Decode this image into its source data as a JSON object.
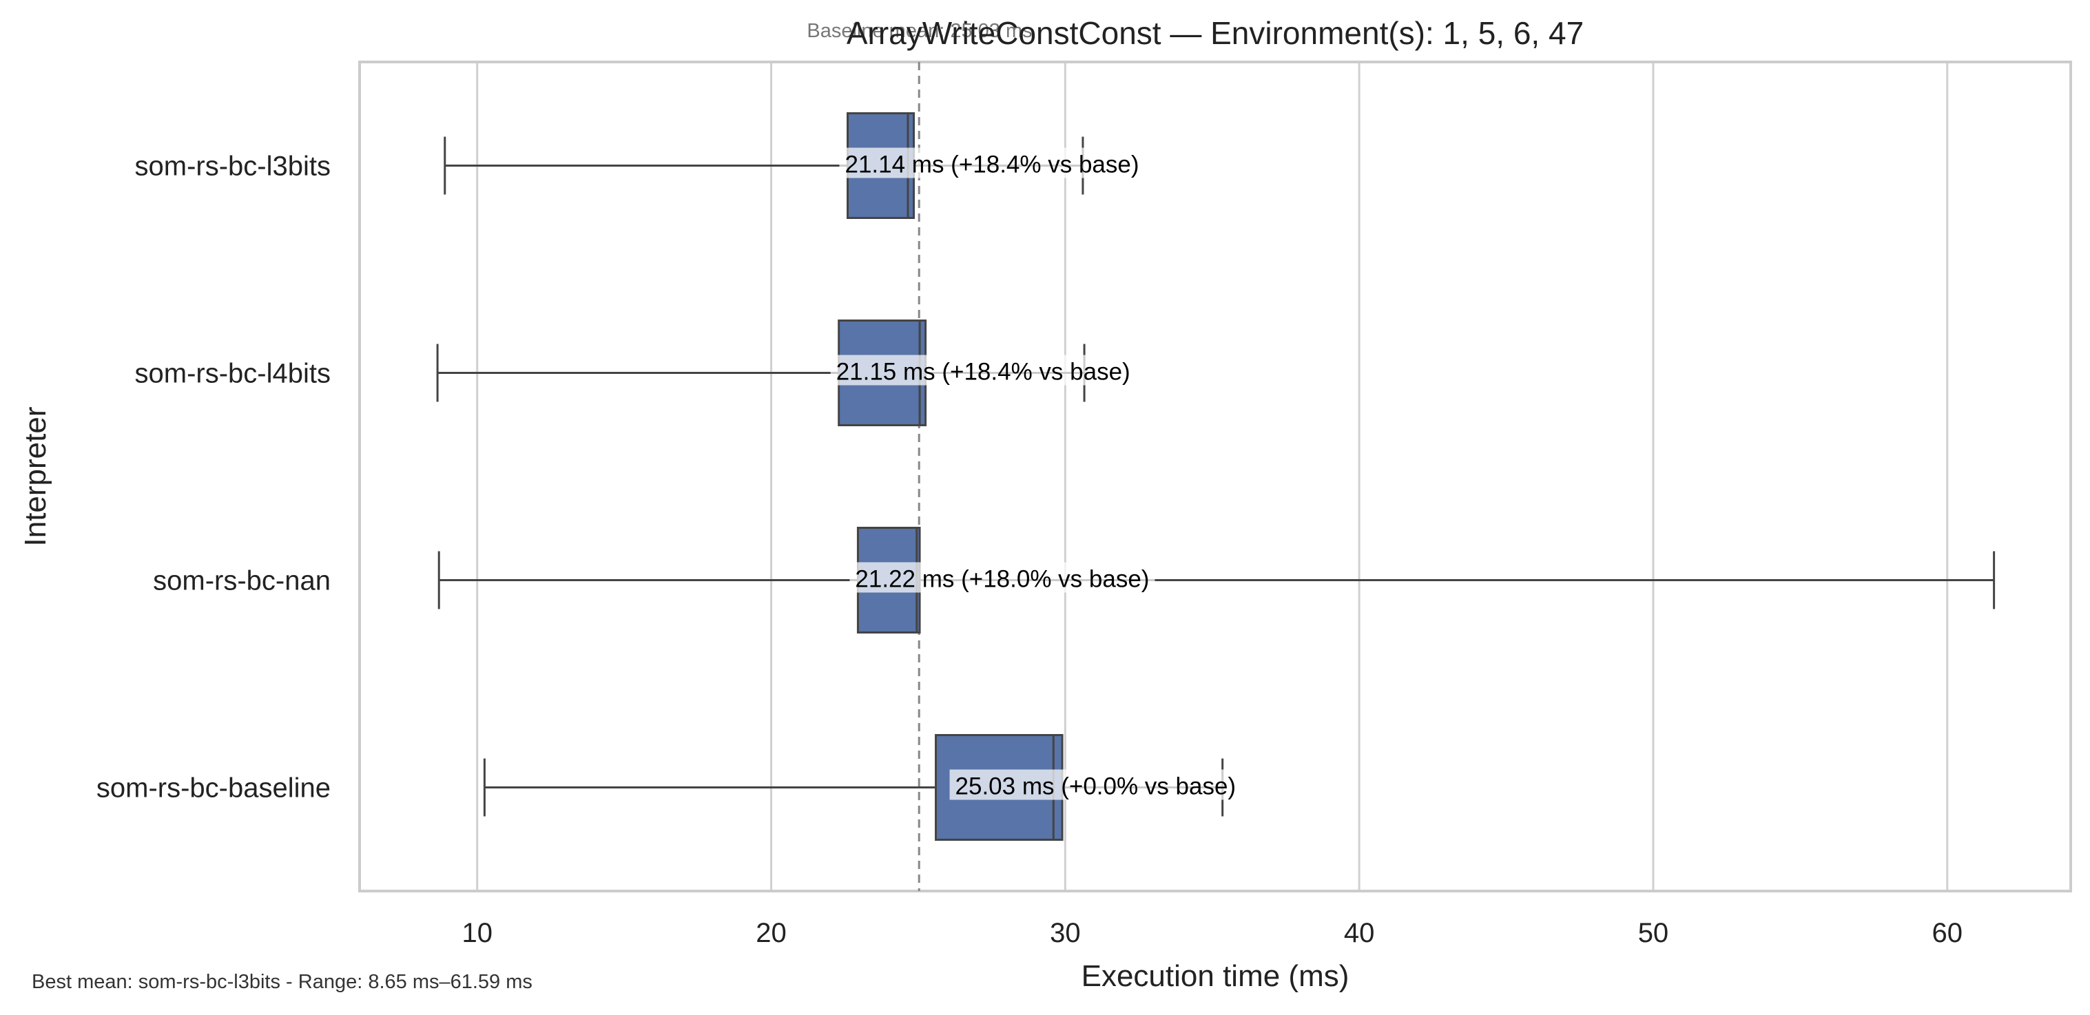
{
  "chart_data": {
    "type": "box",
    "title": "ArrayWriteConstConst — Environment(s): 1, 5, 6, 47",
    "baseline_note": "Baseline mean: 25.03 ms",
    "xlabel": "Execution time (ms)",
    "ylabel": "Interpreter",
    "xlim": [
      6,
      64.2
    ],
    "xticks": [
      10,
      20,
      30,
      40,
      50,
      60
    ],
    "grid": "vertical",
    "baseline_value": 25.03,
    "box_color": "#5874a8",
    "footer": "Best mean: som-rs-bc-l3bits - Range: 8.65 ms–61.59 ms",
    "categories": [
      "som-rs-bc-l3bits",
      "som-rs-bc-l4bits",
      "som-rs-bc-nan",
      "som-rs-bc-baseline"
    ],
    "series": [
      {
        "name": "som-rs-bc-l3bits",
        "whisker_low": 8.9,
        "q1": 22.6,
        "median": 24.65,
        "q3": 24.85,
        "whisker_high": 30.6,
        "label": "21.14 ms  (+18.4% vs base)"
      },
      {
        "name": "som-rs-bc-l4bits",
        "whisker_low": 8.65,
        "q1": 22.3,
        "median": 25.05,
        "q3": 25.25,
        "whisker_high": 30.65,
        "label": "21.15 ms  (+18.4% vs base)"
      },
      {
        "name": "som-rs-bc-nan",
        "whisker_low": 8.7,
        "q1": 22.95,
        "median": 24.95,
        "q3": 25.05,
        "whisker_high": 61.59,
        "label": "21.22 ms  (+18.0% vs base)"
      },
      {
        "name": "som-rs-bc-baseline",
        "whisker_low": 10.25,
        "q1": 25.6,
        "median": 29.6,
        "q3": 29.9,
        "whisker_high": 35.35,
        "label": "25.03 ms  (+0.0% vs base)"
      }
    ]
  }
}
